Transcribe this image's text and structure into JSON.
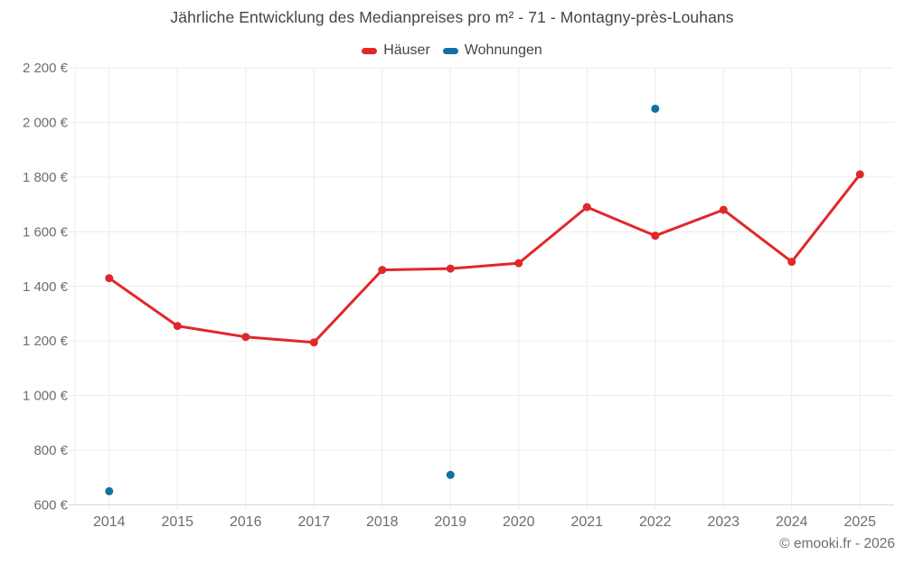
{
  "copyright": "© emooki.fr - 2026",
  "chart_data": {
    "type": "line",
    "title": "Jährliche Entwicklung des Medianpreises pro m² - 71 - Montagny-près-Louhans",
    "xlabel": "",
    "ylabel": "",
    "x_labels": [
      "2014",
      "2015",
      "2016",
      "2017",
      "2018",
      "2019",
      "2020",
      "2021",
      "2022",
      "2023",
      "2024",
      "2025"
    ],
    "series": [
      {
        "id": "haeuser",
        "name": "Häuser",
        "color": "#e0282b",
        "values": [
          1430,
          1255,
          1215,
          1195,
          1460,
          1465,
          1485,
          1690,
          1585,
          1680,
          1490,
          1810
        ]
      },
      {
        "id": "wohnungen",
        "name": "Wohnungen",
        "color": "#1370a4",
        "values": [
          650,
          null,
          null,
          null,
          null,
          710,
          null,
          null,
          2050,
          null,
          null,
          null
        ]
      }
    ],
    "ylim": [
      600,
      2200
    ],
    "yticks": [
      {
        "v": 600,
        "label": "600 €"
      },
      {
        "v": 800,
        "label": "800 €"
      },
      {
        "v": 1000,
        "label": "1 000 €"
      },
      {
        "v": 1200,
        "label": "1 200 €"
      },
      {
        "v": 1400,
        "label": "1 400 €"
      },
      {
        "v": 1600,
        "label": "1 600 €"
      },
      {
        "v": 1800,
        "label": "1 800 €"
      },
      {
        "v": 2000,
        "label": "2 000 €"
      },
      {
        "v": 2200,
        "label": "2 200 €"
      }
    ],
    "grid": true,
    "legend_position": "top"
  }
}
